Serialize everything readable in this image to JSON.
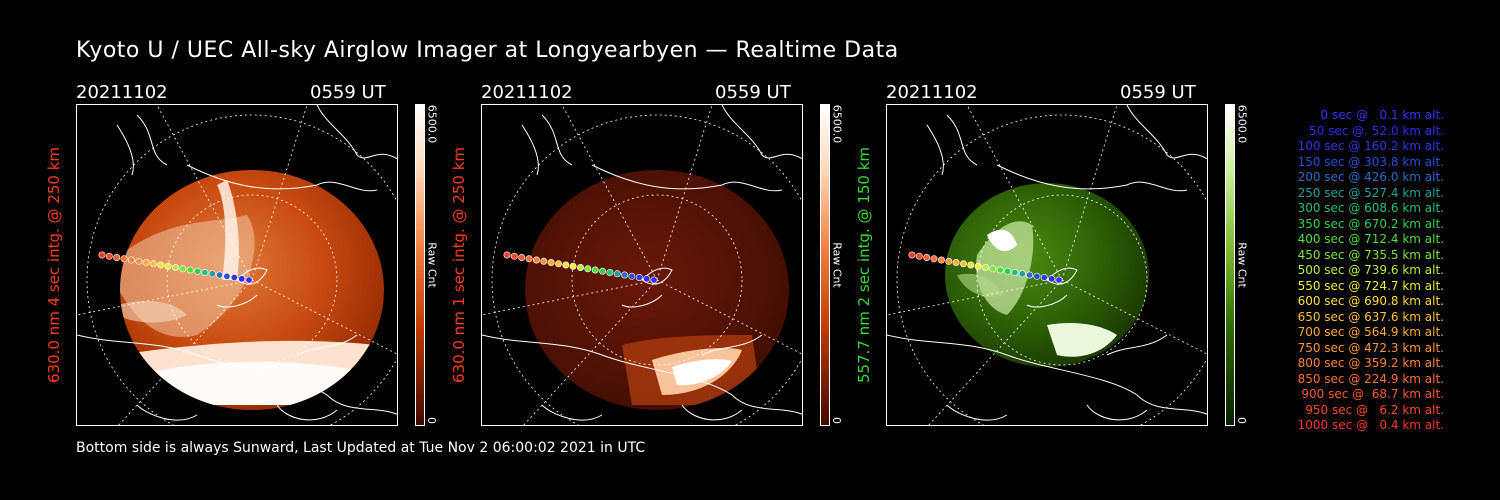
{
  "title": "Kyoto U / UEC All-sky Airglow Imager at Longyearbyen — Realtime Data",
  "footer": "Bottom side is always Sunward, Last Updated at Tue Nov  2 06:00:02 2021 in UTC",
  "panels": [
    {
      "date": "20211102",
      "time": "0559 UT",
      "ylabel": "630.0 nm 4 sec intg. @ 250 km",
      "cbar_max": "6500.0",
      "cbar_label": "Raw Cnt",
      "cbar_min": "0",
      "label_color": "#ff3b1e",
      "colormap": [
        "#ffffff",
        "#ffd9b8",
        "#f08040",
        "#c03a00",
        "#400800"
      ]
    },
    {
      "date": "20211102",
      "time": "0559 UT",
      "ylabel": "630.0 nm 1 sec intg. @ 250 km",
      "cbar_max": "6500.0",
      "cbar_label": "Raw Cnt",
      "cbar_min": "0",
      "label_color": "#ff3b1e",
      "colormap": [
        "#ffffff",
        "#ffd9b8",
        "#f08040",
        "#c03a00",
        "#400800"
      ]
    },
    {
      "date": "20211102",
      "time": "0559 UT",
      "ylabel": "557.7 nm 2 sec intg. @ 150 km",
      "cbar_max": "6500.0",
      "cbar_label": "Raw Cnt",
      "cbar_min": "0",
      "label_color": "#33dd33",
      "colormap": [
        "#ffffff",
        "#ccf0a0",
        "#7dbb30",
        "#2d6a00",
        "#0a1e00"
      ]
    }
  ],
  "legend": [
    {
      "text": "0 sec @   0.1 km alt.",
      "color": "#3333ff"
    },
    {
      "text": "50 sec @  52.0 km alt.",
      "color": "#2d2dee"
    },
    {
      "text": "100 sec @ 160.2 km alt.",
      "color": "#2a3ae0"
    },
    {
      "text": "150 sec @ 303.8 km alt.",
      "color": "#2850d8"
    },
    {
      "text": "200 sec @ 426.0 km alt.",
      "color": "#2c6ccc"
    },
    {
      "text": "250 sec @ 527.4 km alt.",
      "color": "#20a0a0"
    },
    {
      "text": "300 sec @ 608.6 km alt.",
      "color": "#22c07a"
    },
    {
      "text": "350 sec @ 670.2 km alt.",
      "color": "#2cd24a"
    },
    {
      "text": "400 sec @ 712.4 km alt.",
      "color": "#4ee03a"
    },
    {
      "text": "450 sec @ 735.5 km alt.",
      "color": "#80e63a"
    },
    {
      "text": "500 sec @ 739.6 km alt.",
      "color": "#b8ee40"
    },
    {
      "text": "550 sec @ 724.7 km alt.",
      "color": "#eeee40"
    },
    {
      "text": "600 sec @ 690.8 km alt.",
      "color": "#ffdf3a"
    },
    {
      "text": "650 sec @ 637.6 km alt.",
      "color": "#ffc23a"
    },
    {
      "text": "700 sec @ 564.9 km alt.",
      "color": "#ffab3a"
    },
    {
      "text": "750 sec @ 472.3 km alt.",
      "color": "#ff963a"
    },
    {
      "text": "800 sec @ 359.2 km alt.",
      "color": "#ff8238"
    },
    {
      "text": "850 sec @ 224.9 km alt.",
      "color": "#ff6e34"
    },
    {
      "text": "900 sec @  68.7 km alt.",
      "color": "#ff5a30"
    },
    {
      "text": "950 sec @   6.2 km alt.",
      "color": "#ff482c"
    },
    {
      "text": "1000 sec @   0.4 km alt.",
      "color": "#ff3828"
    }
  ]
}
